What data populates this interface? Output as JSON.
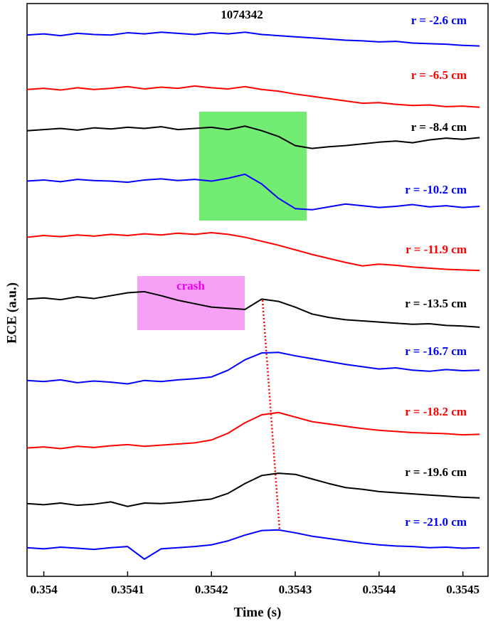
{
  "chart_data": {
    "type": "line",
    "title": "1074342",
    "xlabel": "Time (s)",
    "ylabel": "ECE (a.u.)",
    "xlim": [
      0.35398,
      0.35453
    ],
    "xticks": [
      0.354,
      0.3541,
      0.3542,
      0.3543,
      0.3544,
      0.3545
    ],
    "ylim": [
      0,
      10
    ],
    "x": [
      0.35398,
      0.354,
      0.35402,
      0.35404,
      0.35406,
      0.35408,
      0.3541,
      0.35412,
      0.35414,
      0.35416,
      0.35418,
      0.3542,
      0.35422,
      0.35424,
      0.35426,
      0.35428,
      0.3543,
      0.35432,
      0.35434,
      0.35436,
      0.35438,
      0.3544,
      0.35442,
      0.35444,
      0.35446,
      0.35448,
      0.3545,
      0.35452
    ],
    "series": [
      {
        "name": "r = -2.6 cm",
        "color": "#0000ff",
        "values": [
          9.45,
          9.47,
          9.44,
          9.48,
          9.46,
          9.45,
          9.49,
          9.47,
          9.5,
          9.48,
          9.46,
          9.49,
          9.47,
          9.5,
          9.46,
          9.44,
          9.42,
          9.4,
          9.38,
          9.36,
          9.35,
          9.33,
          9.34,
          9.31,
          9.3,
          9.29,
          9.27,
          9.26
        ]
      },
      {
        "name": "r = -6.5 cm",
        "color": "#ff0000",
        "values": [
          8.5,
          8.52,
          8.49,
          8.53,
          8.5,
          8.52,
          8.55,
          8.51,
          8.54,
          8.52,
          8.56,
          8.53,
          8.51,
          8.55,
          8.5,
          8.47,
          8.42,
          8.38,
          8.34,
          8.3,
          8.26,
          8.27,
          8.24,
          8.22,
          8.23,
          8.2,
          8.21,
          8.19
        ]
      },
      {
        "name": "r = -8.4 cm",
        "color": "#000000",
        "values": [
          7.78,
          7.8,
          7.82,
          7.79,
          7.83,
          7.81,
          7.84,
          7.82,
          7.85,
          7.8,
          7.82,
          7.84,
          7.8,
          7.86,
          7.78,
          7.68,
          7.52,
          7.47,
          7.5,
          7.52,
          7.55,
          7.58,
          7.6,
          7.57,
          7.62,
          7.65,
          7.63,
          7.66
        ]
      },
      {
        "name": "r = -10.2 cm",
        "color": "#0000ff",
        "values": [
          6.9,
          6.92,
          6.89,
          6.93,
          6.91,
          6.9,
          6.88,
          6.92,
          6.94,
          6.91,
          6.93,
          6.9,
          6.95,
          7.02,
          6.85,
          6.6,
          6.42,
          6.4,
          6.45,
          6.5,
          6.47,
          6.44,
          6.46,
          6.49,
          6.45,
          6.47,
          6.44,
          6.46
        ]
      },
      {
        "name": "r = -11.9 cm",
        "color": "#ff0000",
        "values": [
          5.92,
          5.95,
          5.93,
          5.96,
          5.94,
          5.97,
          5.95,
          5.98,
          5.96,
          5.99,
          5.97,
          6.0,
          5.97,
          5.92,
          5.85,
          5.78,
          5.7,
          5.62,
          5.55,
          5.48,
          5.42,
          5.45,
          5.43,
          5.4,
          5.38,
          5.36,
          5.35,
          5.34
        ]
      },
      {
        "name": "r = -13.5 cm",
        "color": "#000000",
        "values": [
          4.84,
          4.86,
          4.83,
          4.88,
          4.85,
          4.9,
          4.95,
          4.97,
          4.9,
          4.82,
          4.76,
          4.7,
          4.68,
          4.66,
          4.84,
          4.8,
          4.7,
          4.58,
          4.52,
          4.48,
          4.46,
          4.44,
          4.42,
          4.4,
          4.41,
          4.38,
          4.37,
          4.35
        ]
      },
      {
        "name": "r = -16.7 cm",
        "color": "#0000ff",
        "values": [
          3.42,
          3.4,
          3.43,
          3.38,
          3.41,
          3.39,
          3.36,
          3.42,
          3.4,
          3.43,
          3.45,
          3.48,
          3.6,
          3.78,
          3.9,
          3.91,
          3.85,
          3.8,
          3.75,
          3.7,
          3.66,
          3.62,
          3.64,
          3.6,
          3.58,
          3.61,
          3.59,
          3.6
        ]
      },
      {
        "name": "r = -18.2 cm",
        "color": "#ff0000",
        "values": [
          2.24,
          2.26,
          2.23,
          2.27,
          2.25,
          2.28,
          2.3,
          2.27,
          2.29,
          2.31,
          2.33,
          2.38,
          2.5,
          2.68,
          2.82,
          2.86,
          2.78,
          2.7,
          2.66,
          2.62,
          2.58,
          2.55,
          2.53,
          2.51,
          2.5,
          2.49,
          2.47,
          2.48
        ]
      },
      {
        "name": "r = -19.6 cm",
        "color": "#000000",
        "values": [
          1.27,
          1.25,
          1.28,
          1.24,
          1.26,
          1.3,
          1.22,
          1.28,
          1.27,
          1.29,
          1.32,
          1.35,
          1.45,
          1.62,
          1.76,
          1.8,
          1.78,
          1.7,
          1.62,
          1.55,
          1.52,
          1.48,
          1.46,
          1.44,
          1.42,
          1.4,
          1.38,
          1.37
        ]
      },
      {
        "name": "r = -21.0 cm",
        "color": "#0000ff",
        "values": [
          0.5,
          0.48,
          0.51,
          0.49,
          0.47,
          0.5,
          0.52,
          0.3,
          0.48,
          0.5,
          0.52,
          0.55,
          0.62,
          0.72,
          0.8,
          0.81,
          0.76,
          0.7,
          0.66,
          0.62,
          0.58,
          0.55,
          0.53,
          0.52,
          0.5,
          0.51,
          0.49,
          0.5
        ]
      }
    ],
    "annotations": [
      "crash"
    ]
  }
}
